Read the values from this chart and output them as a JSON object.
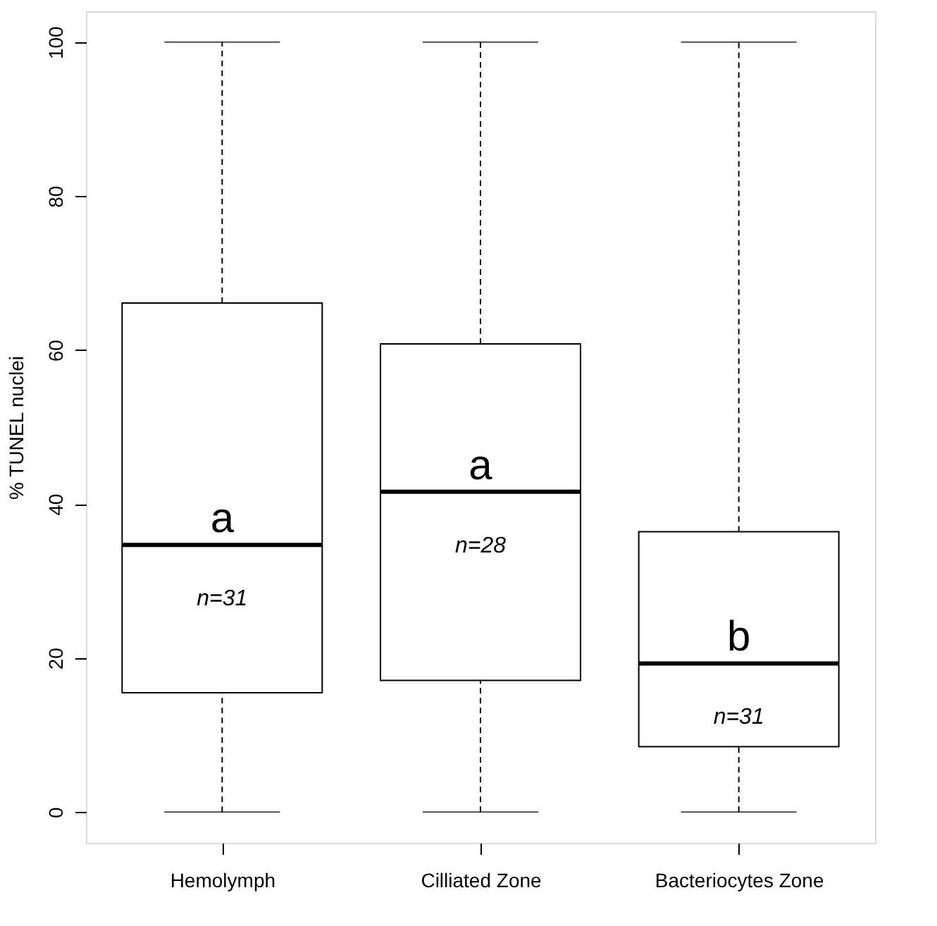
{
  "chart_data": {
    "type": "box",
    "ylabel": "% TUNEL nuclei",
    "categories": [
      "Hemolymph",
      "Cilliated Zone",
      "Bacteriocytes Zone"
    ],
    "boxes": [
      {
        "low": 0,
        "q1": 15.5,
        "median": 34.7,
        "q3": 66.1,
        "high": 100
      },
      {
        "low": 0,
        "q1": 17.1,
        "median": 41.6,
        "q3": 60.8,
        "high": 100
      },
      {
        "low": 0,
        "q1": 8.5,
        "median": 19.3,
        "q3": 36.4,
        "high": 100
      }
    ],
    "ylim": [
      -4,
      104
    ],
    "yticks": [
      0,
      20,
      40,
      60,
      80,
      100
    ],
    "grid": false,
    "line_style": "dashed",
    "annotations": [
      "a",
      "n=31",
      "a",
      "n=28",
      "b",
      "n=31"
    ]
  }
}
